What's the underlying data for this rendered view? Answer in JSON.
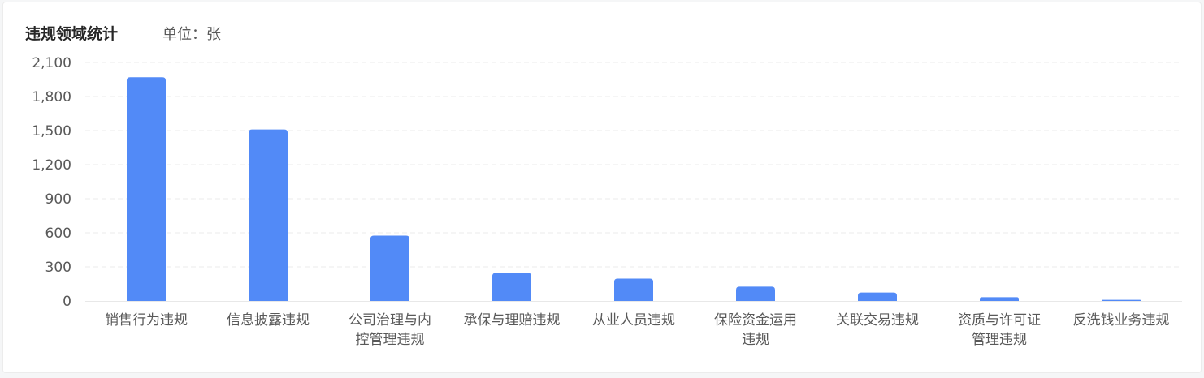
{
  "chart_data": {
    "type": "bar",
    "title": "违规领域统计",
    "unit_label": "单位：张",
    "categories": [
      "销售行为违规",
      "信息披露违规",
      "公司治理与内控管理违规",
      "承保与理赔违规",
      "从业人员违规",
      "保险资金运用违规",
      "关联交易违规",
      "资质与许可证管理违规",
      "反洗钱业务违规"
    ],
    "values": [
      1970,
      1510,
      575,
      246,
      196,
      126,
      74,
      33,
      10
    ],
    "ylim": [
      0,
      2100
    ],
    "yticks": [
      "0",
      "300",
      "600",
      "900",
      "1,200",
      "1,500",
      "1,800",
      "2,100"
    ],
    "grid": true,
    "bar_color": "#528af7"
  }
}
